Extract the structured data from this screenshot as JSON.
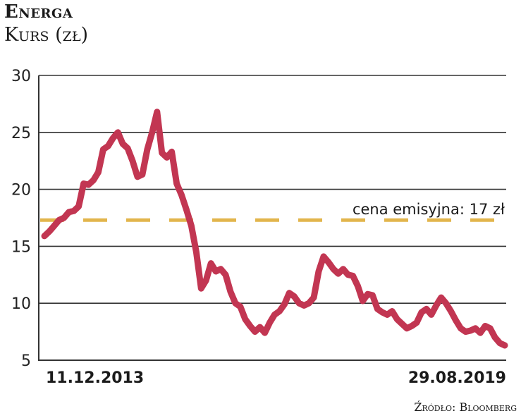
{
  "header": {
    "title": "Energa",
    "subtitle": "Kurs (zł)"
  },
  "annotation": {
    "label": "cena emisyjna: 17 zł",
    "value": 17.3
  },
  "source": "Źródło: Bloomberg",
  "colors": {
    "line": "#c23652",
    "reference_line": "#e2b54c",
    "grid": "#333333"
  },
  "chart_data": {
    "type": "line",
    "title": "Energa",
    "subtitle": "Kurs (zł)",
    "xlabel": "",
    "ylabel": "Kurs (zł)",
    "ylim": [
      5,
      30
    ],
    "yticks": [
      5,
      10,
      15,
      20,
      25,
      30
    ],
    "ytick_labels": [
      "5",
      "10",
      "15",
      "20",
      "25",
      "30"
    ],
    "xtick_labels": [
      "11.12.2013",
      "29.08.2019"
    ],
    "grid": true,
    "reference_line": {
      "value": 17.3,
      "label": "cena emisyjna: 17 zł",
      "style": "dashed"
    },
    "series": [
      {
        "name": "Energa",
        "x_frac": [
          0.0,
          0.01,
          0.02,
          0.03,
          0.04,
          0.05,
          0.06,
          0.07,
          0.08,
          0.09,
          0.1,
          0.11,
          0.12,
          0.13,
          0.14,
          0.15,
          0.16,
          0.17,
          0.18,
          0.19,
          0.2,
          0.21,
          0.22,
          0.23,
          0.24,
          0.25,
          0.26,
          0.27,
          0.28,
          0.29,
          0.3,
          0.31,
          0.32,
          0.33,
          0.34,
          0.35,
          0.36,
          0.37,
          0.38,
          0.39,
          0.4,
          0.41,
          0.42,
          0.43,
          0.44,
          0.45,
          0.46,
          0.47,
          0.48,
          0.49,
          0.5,
          0.51,
          0.52,
          0.53,
          0.54,
          0.55,
          0.56,
          0.57,
          0.58,
          0.59,
          0.6,
          0.61,
          0.62,
          0.63,
          0.64,
          0.65,
          0.66,
          0.67,
          0.68,
          0.69,
          0.7,
          0.71,
          0.72,
          0.73,
          0.74,
          0.75,
          0.76,
          0.77,
          0.78,
          0.79,
          0.8,
          0.81,
          0.82,
          0.83,
          0.84,
          0.85,
          0.86,
          0.87,
          0.88,
          0.89,
          0.9,
          0.91,
          0.92,
          0.93,
          0.94,
          0.95,
          0.96,
          0.97,
          0.98,
          0.99,
          1.0
        ],
        "values": [
          15.9,
          16.3,
          16.8,
          17.3,
          17.5,
          18.0,
          18.1,
          18.5,
          20.5,
          20.4,
          20.8,
          21.5,
          23.5,
          23.8,
          24.5,
          25.0,
          24.0,
          23.6,
          22.5,
          21.1,
          21.3,
          23.5,
          25.0,
          26.8,
          23.2,
          22.8,
          23.3,
          20.5,
          19.5,
          18.2,
          16.8,
          14.5,
          11.3,
          12.0,
          13.5,
          12.8,
          13.0,
          12.5,
          11.0,
          10.0,
          9.7,
          8.6,
          8.0,
          7.5,
          7.9,
          7.4,
          8.3,
          9.0,
          9.3,
          9.9,
          10.9,
          10.6,
          10.0,
          9.8,
          10.0,
          10.5,
          12.8,
          14.1,
          13.6,
          13.0,
          12.6,
          13.0,
          12.5,
          12.4,
          11.5,
          10.2,
          10.8,
          10.7,
          9.5,
          9.2,
          9.0,
          9.3,
          8.6,
          8.2,
          7.8,
          8.0,
          8.3,
          9.2,
          9.5,
          9.0,
          9.8,
          10.5,
          10.0,
          9.3,
          8.5,
          7.8,
          7.5,
          7.6,
          7.8,
          7.4,
          8.0,
          7.8,
          7.0,
          6.5,
          6.3,
          6.3,
          6.3,
          6.3,
          6.3,
          6.3,
          6.3
        ]
      }
    ]
  }
}
